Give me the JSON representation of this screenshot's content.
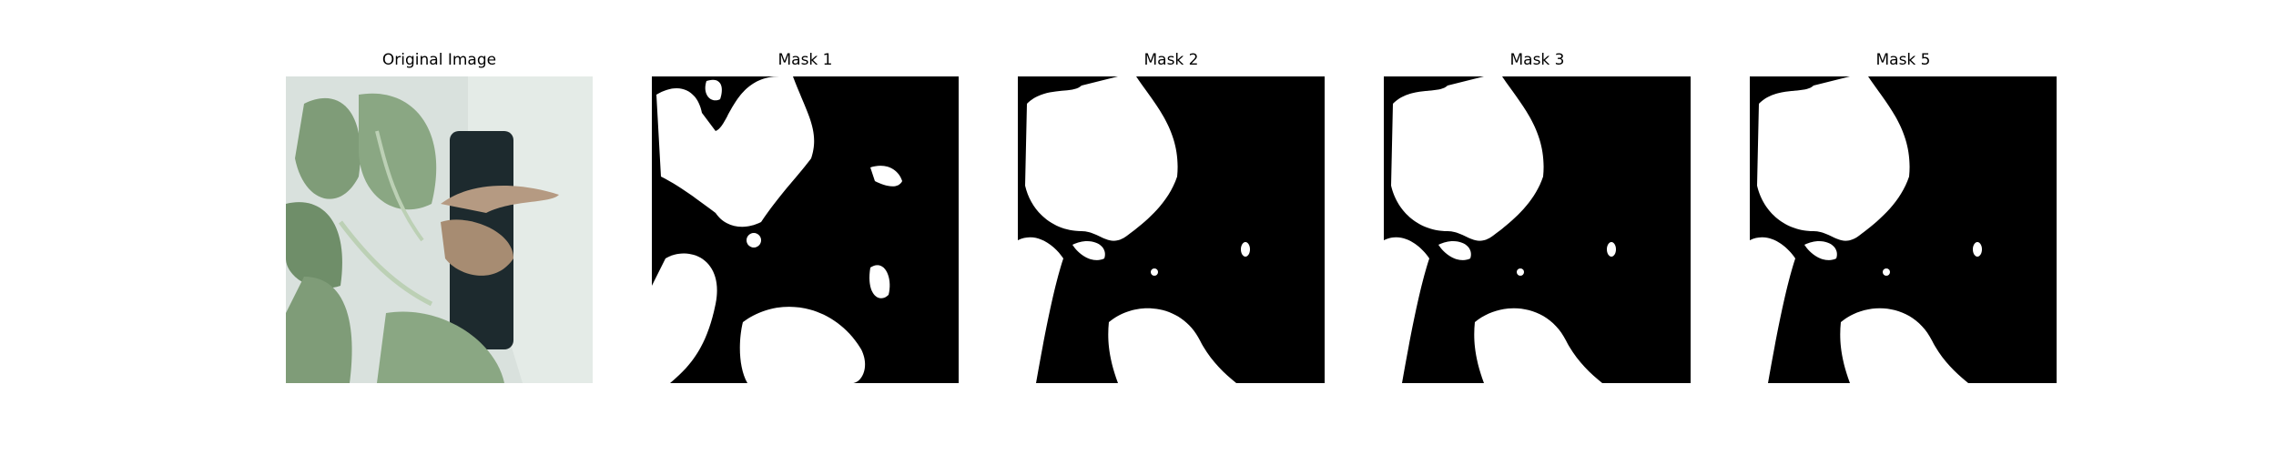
{
  "figure": {
    "panels": [
      {
        "id": "original",
        "title": "Original Image",
        "kind": "photo"
      },
      {
        "id": "mask1",
        "title": "Mask 1",
        "kind": "mask"
      },
      {
        "id": "mask2",
        "title": "Mask 2",
        "kind": "mask"
      },
      {
        "id": "mask3",
        "title": "Mask 3",
        "kind": "mask"
      },
      {
        "id": "mask5",
        "title": "Mask 5",
        "kind": "mask"
      }
    ]
  },
  "colors": {
    "background": "#ffffff",
    "mask_foreground": "#ffffff",
    "mask_background": "#000000",
    "wall": "#d9e1dd",
    "leaf_green": "#7f9c78",
    "leaf_dark": "#5d7d58",
    "dead_leaf": "#b59a82",
    "pot": "#1d2a2e"
  }
}
